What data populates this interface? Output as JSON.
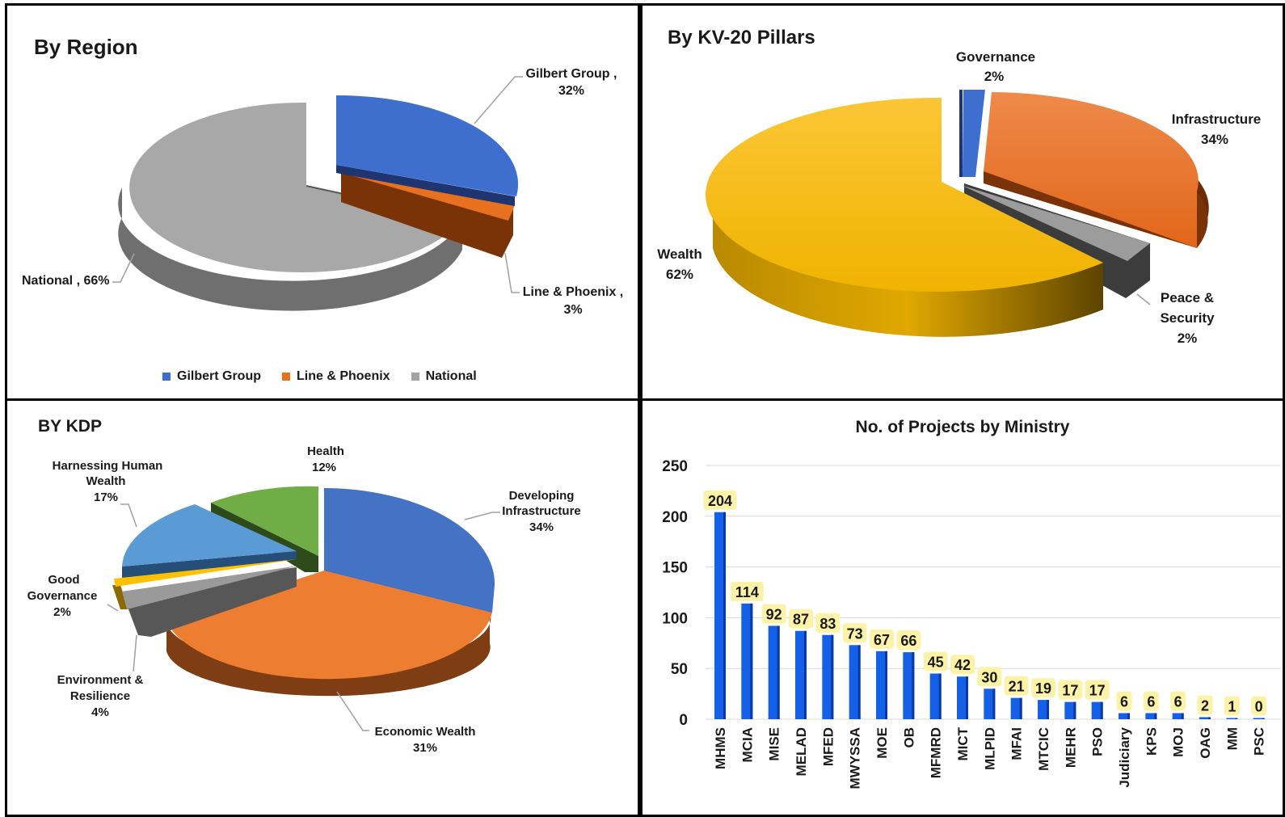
{
  "charts": {
    "region": {
      "title": "By Region",
      "type": "pie",
      "slices": [
        {
          "name": "Gilbert Group",
          "label": "Gilbert Group ,",
          "value_label": "32%",
          "value": 32,
          "color": "#3f6fce"
        },
        {
          "name": "Line & Phoenix",
          "label": "Line & Phoenix ,",
          "value_label": "3%",
          "value": 3,
          "color": "#e8711f"
        },
        {
          "name": "National",
          "label": "National , 66%",
          "value_label": "",
          "value": 66,
          "color": "#a3a3a3"
        }
      ],
      "legend": [
        "Gilbert Group",
        "Line & Phoenix",
        "National"
      ],
      "legend_position": "bottom"
    },
    "pillars": {
      "title": "By KV-20 Pillars",
      "type": "pie",
      "slices": [
        {
          "name": "Governance",
          "label": "Governance",
          "value_label": "2%",
          "value": 2,
          "color": "#3f6fce"
        },
        {
          "name": "Infrastructure",
          "label": "Infrastructure",
          "value_label": "34%",
          "value": 34,
          "color": "#e8711f"
        },
        {
          "name": "Peace & Security",
          "label": "Peace &",
          "label2": "Security",
          "value_label": "2%",
          "value": 2,
          "color": "#9c9c9c"
        },
        {
          "name": "Wealth",
          "label": "Wealth",
          "value_label": "62%",
          "value": 62,
          "color": "#f5bd0c"
        }
      ]
    },
    "kdp": {
      "title": "BY KDP",
      "type": "pie",
      "slices": [
        {
          "name": "Developing Infrastructure",
          "label": "Developing",
          "label2": "Infrastructure",
          "value_label": "34%",
          "value": 34,
          "color": "#4472c4"
        },
        {
          "name": "Economic Wealth",
          "label": "Economic Wealth",
          "value_label": "31%",
          "value": 31,
          "color": "#ed7d31"
        },
        {
          "name": "Environment & Resilience",
          "label": "Environment &",
          "label2": "Resilience",
          "value_label": "4%",
          "value": 4,
          "color": "#8e8e8e"
        },
        {
          "name": "Good Governance",
          "label": "Good",
          "label2": "Governance",
          "value_label": "2%",
          "value": 2,
          "color": "#ffc000"
        },
        {
          "name": "Harnessing Human Wealth",
          "label": "Harnessing Human",
          "label2": "Wealth",
          "value_label": "17%",
          "value": 17,
          "color": "#5b9bd5"
        },
        {
          "name": "Health",
          "label": "Health",
          "value_label": "12%",
          "value": 12,
          "color": "#70ad47"
        }
      ]
    }
  },
  "chart_data": {
    "type": "bar",
    "title": "No. of Projects by Ministry",
    "categories": [
      "MHMS",
      "MCIA",
      "MISE",
      "MELAD",
      "MFED",
      "MWYSSA",
      "MOE",
      "OB",
      "MFMRD",
      "MICT",
      "MLPID",
      "MFAI",
      "MTCIC",
      "MEHR",
      "PSO",
      "Judiciary",
      "KPS",
      "MOJ",
      "OAG",
      "MM",
      "PSC"
    ],
    "values": [
      204,
      114,
      92,
      87,
      83,
      73,
      67,
      66,
      45,
      42,
      30,
      21,
      19,
      17,
      17,
      6,
      6,
      6,
      2,
      1,
      0
    ],
    "ylim": [
      0,
      250
    ],
    "yticks": [
      0,
      50,
      100,
      150,
      200,
      250
    ],
    "grid": true,
    "color": "#1560e8"
  }
}
